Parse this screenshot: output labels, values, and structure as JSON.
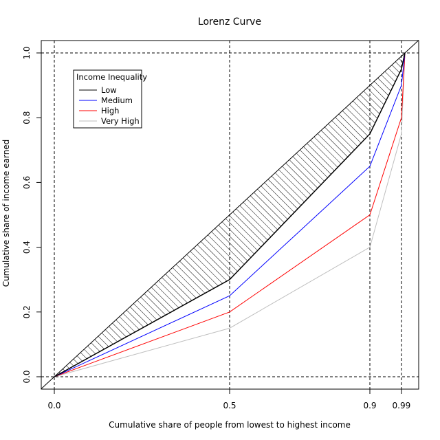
{
  "chart_data": {
    "type": "line",
    "title": "Lorenz Curve",
    "xlabel": "Cumulative share of people from lowest to highest income",
    "ylabel": "Cumulative share of income earned",
    "xlim": [
      0,
      1
    ],
    "ylim": [
      0,
      1
    ],
    "x_ticks": [
      0.0,
      0.5,
      0.9,
      0.99
    ],
    "x_tick_labels": [
      "0.0",
      "0.5",
      "0.9",
      "0.99"
    ],
    "y_ticks": [
      0.0,
      0.2,
      0.4,
      0.6,
      0.8,
      1.0
    ],
    "y_tick_labels": [
      "0.0",
      "0.2",
      "0.4",
      "0.6",
      "0.8",
      "1.0"
    ],
    "reference_lines": {
      "vertical": [
        0,
        0.5,
        0.9,
        0.99
      ],
      "horizontal": [
        0,
        1
      ],
      "line_of_equality": true
    },
    "x": [
      0,
      0.5,
      0.9,
      0.99,
      1.0
    ],
    "series": [
      {
        "name": "Low",
        "color": "#000000",
        "values": [
          0,
          0.3,
          0.75,
          0.95,
          1.0
        ]
      },
      {
        "name": "Medium",
        "color": "#0000ff",
        "values": [
          0,
          0.25,
          0.65,
          0.9,
          1.0
        ]
      },
      {
        "name": "High",
        "color": "#ff0000",
        "values": [
          0,
          0.2,
          0.5,
          0.8,
          1.0
        ]
      },
      {
        "name": "Very High",
        "color": "#bebebe",
        "values": [
          0,
          0.15,
          0.4,
          0.75,
          1.0
        ]
      }
    ],
    "shaded_area": {
      "between": "line of equality and Low",
      "pattern": "hatched"
    },
    "legend": {
      "title": "Income Inequality",
      "position": "top-left"
    }
  }
}
